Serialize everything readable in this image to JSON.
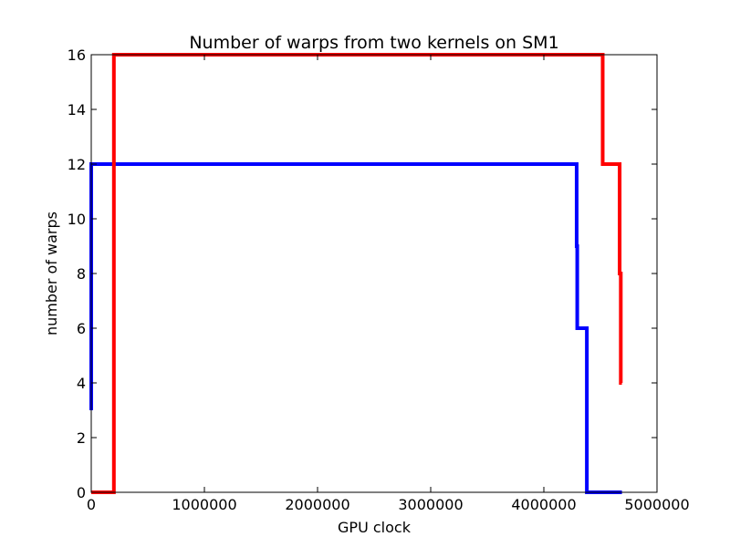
{
  "chart_data": {
    "type": "line",
    "title": "Number of warps from two kernels on SM1",
    "xlabel": "GPU clock",
    "ylabel": "number of warps",
    "xlim": [
      0,
      5000000
    ],
    "ylim": [
      0,
      16
    ],
    "x_ticks": [
      0,
      1000000,
      2000000,
      3000000,
      4000000,
      5000000
    ],
    "x_tick_labels": [
      "0",
      "1000000",
      "2000000",
      "3000000",
      "4000000",
      "5000000"
    ],
    "y_ticks": [
      0,
      2,
      4,
      6,
      8,
      10,
      12,
      14,
      16
    ],
    "y_tick_labels": [
      "0",
      "2",
      "4",
      "6",
      "8",
      "10",
      "12",
      "14",
      "16"
    ],
    "grid": false,
    "legend": "none",
    "series": [
      {
        "color": "#0000ff",
        "x": [
          0,
          0,
          5000,
          4290000,
          4290000,
          4295000,
          4295000,
          4380000,
          4380000,
          4690000
        ],
        "y": [
          3,
          12,
          12,
          12,
          9,
          9,
          6,
          6,
          0,
          0
        ]
      },
      {
        "color": "#ff0000",
        "x": [
          0,
          200000,
          200000,
          210000,
          4520000,
          4520000,
          4670000,
          4670000,
          4680000,
          4680000,
          4690000
        ],
        "y": [
          0,
          0,
          16,
          16,
          16,
          12,
          12,
          8,
          8,
          4,
          4
        ]
      }
    ]
  }
}
